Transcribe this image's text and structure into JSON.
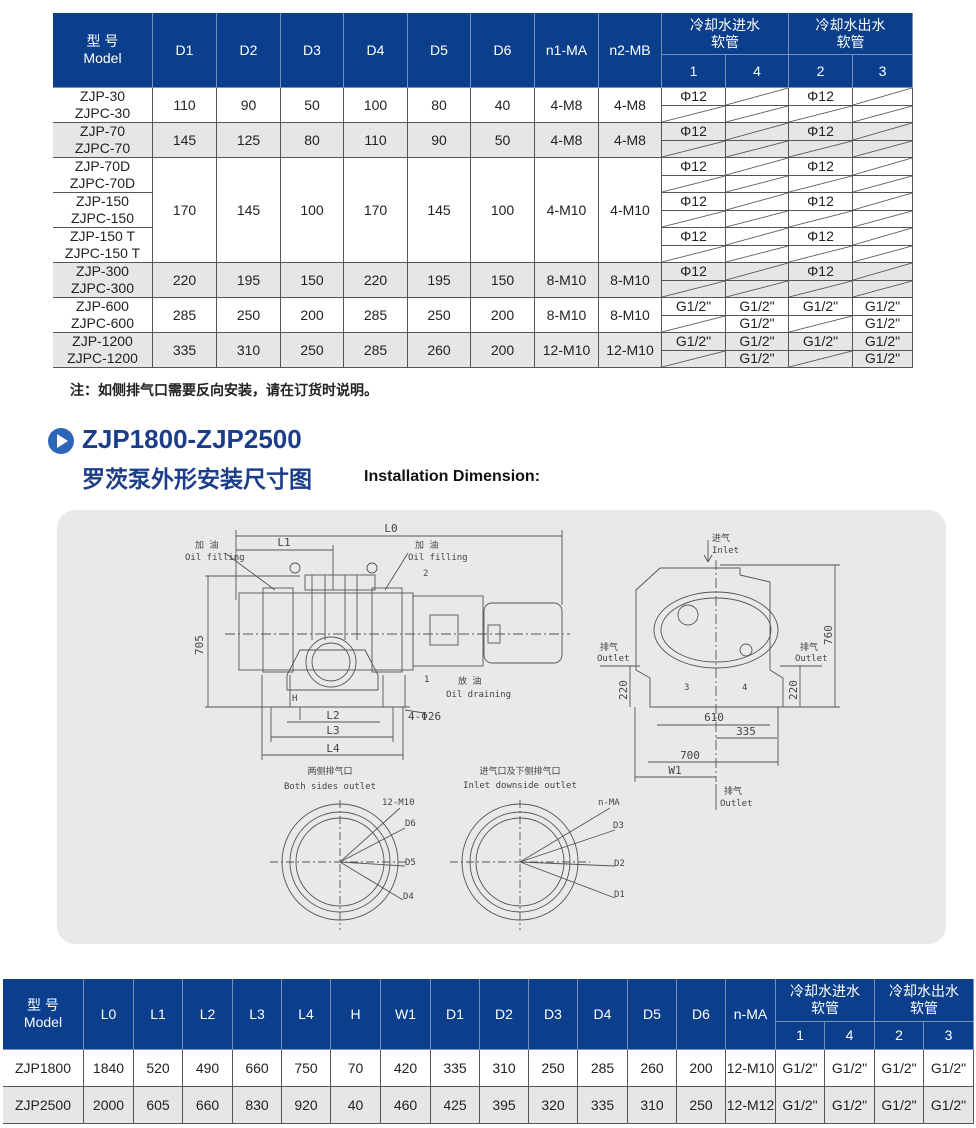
{
  "top_table": {
    "headers": {
      "model": "型  号\nModel",
      "cols": [
        "D1",
        "D2",
        "D3",
        "D4",
        "D5",
        "D6",
        "n1-MA",
        "n2-MB"
      ],
      "cool_in": "冷却水进水\n软管",
      "cool_out": "冷却水出水\n软管",
      "cool_sub": [
        "1",
        "4",
        "2",
        "3"
      ]
    },
    "blocks": [
      {
        "models": [
          "ZJP-30\nZJPC-30"
        ],
        "values": [
          "110",
          "90",
          "50",
          "100",
          "80",
          "40",
          "4-M8",
          "4-M8"
        ],
        "gray": false,
        "cooling": [
          [
            [
              "Φ12",
              ""
            ],
            [
              "",
              ""
            ],
            [
              "Φ12",
              ""
            ],
            [
              "",
              ""
            ]
          ]
        ]
      },
      {
        "models": [
          "ZJP-70\nZJPC-70"
        ],
        "values": [
          "145",
          "125",
          "80",
          "110",
          "90",
          "50",
          "4-M8",
          "4-M8"
        ],
        "gray": true,
        "cooling": [
          [
            [
              "Φ12",
              ""
            ],
            [
              "",
              ""
            ],
            [
              "Φ12",
              ""
            ],
            [
              "",
              ""
            ]
          ]
        ]
      },
      {
        "models": [
          "ZJP-70D\nZJPC-70D",
          "ZJP-150\nZJPC-150",
          "ZJP-150 T\nZJPC-150 T"
        ],
        "values": [
          "170",
          "145",
          "100",
          "170",
          "145",
          "100",
          "4-M10",
          "4-M10"
        ],
        "gray": false,
        "cooling": [
          [
            [
              "Φ12",
              ""
            ],
            [
              "",
              ""
            ],
            [
              "Φ12",
              ""
            ],
            [
              "",
              ""
            ]
          ],
          [
            [
              "Φ12",
              ""
            ],
            [
              "",
              ""
            ],
            [
              "Φ12",
              ""
            ],
            [
              "",
              ""
            ]
          ],
          [
            [
              "Φ12",
              ""
            ],
            [
              "",
              ""
            ],
            [
              "Φ12",
              ""
            ],
            [
              "",
              ""
            ]
          ]
        ]
      },
      {
        "models": [
          "ZJP-300\nZJPC-300"
        ],
        "values": [
          "220",
          "195",
          "150",
          "220",
          "195",
          "150",
          "8-M10",
          "8-M10"
        ],
        "gray": true,
        "cooling": [
          [
            [
              "Φ12",
              ""
            ],
            [
              "",
              ""
            ],
            [
              "Φ12",
              ""
            ],
            [
              "",
              ""
            ]
          ]
        ]
      },
      {
        "models": [
          "ZJP-600\nZJPC-600"
        ],
        "values": [
          "285",
          "250",
          "200",
          "285",
          "250",
          "200",
          "8-M10",
          "8-M10"
        ],
        "gray": false,
        "cooling": [
          [
            [
              "G1/2\"",
              ""
            ],
            [
              "G1/2\"",
              "G1/2\""
            ],
            [
              "G1/2\"",
              ""
            ],
            [
              "G1/2\"",
              "G1/2\""
            ]
          ]
        ]
      },
      {
        "models": [
          "ZJP-1200\nZJPC-1200"
        ],
        "values": [
          "335",
          "310",
          "250",
          "285",
          "260",
          "200",
          "12-M10",
          "12-M10"
        ],
        "gray": true,
        "cooling": [
          [
            [
              "G1/2\"",
              ""
            ],
            [
              "G1/2\"",
              "G1/2\""
            ],
            [
              "G1/2\"",
              ""
            ],
            [
              "G1/2\"",
              "G1/2\""
            ]
          ]
        ]
      }
    ]
  },
  "note": "注：如侧排气口需要反向安装，请在订货时说明。",
  "section": {
    "title": "ZJP1800-ZJP2500",
    "subtitle": "罗茨泵外形安装尺寸图",
    "subtitle_en": "Installation Dimension:"
  },
  "drawing": {
    "L0": "L0",
    "L1": "L1",
    "L2": "L2",
    "L3": "L3",
    "L4": "L4",
    "H": "H",
    "h705": "705",
    "foot": "4-Φ26",
    "oil_fill_cn": "加 油",
    "oil_fill_en": "Oil filling",
    "oil_drain_cn": "放 油",
    "oil_drain_en": "Oil draining",
    "n1": "1",
    "n2": "2",
    "n3": "3",
    "n4": "4",
    "inlet_cn": "进气",
    "inlet_en": "Inlet",
    "outlet_cn": "排气",
    "outlet_en": "Outlet",
    "h760": "760",
    "h220": "220",
    "w610": "610",
    "w335": "335",
    "w700": "700",
    "W1": "W1",
    "both_cn": "两侧排气口",
    "both_en": "Both sides outlet",
    "inlet_down_cn": "进气口及下侧排气口",
    "inlet_down_en": "Inlet downside outlet",
    "bolt_left": "12-M10",
    "D6": "D6",
    "D5": "D5",
    "D4": "D4",
    "nMA": "n-MA",
    "D3": "D3",
    "D2": "D2",
    "D1": "D1"
  },
  "bottom_table": {
    "headers": {
      "model": "型  号\nModel",
      "cols": [
        "L0",
        "L1",
        "L2",
        "L3",
        "L4",
        "H",
        "W1",
        "D1",
        "D2",
        "D3",
        "D4",
        "D5",
        "D6",
        "n-MA"
      ],
      "cool_in": "冷却水进水\n软管",
      "cool_out": "冷却水出水\n软管",
      "cool_sub": [
        "1",
        "4",
        "2",
        "3"
      ]
    },
    "rows": [
      {
        "model": "ZJP1800",
        "values": [
          "1840",
          "520",
          "490",
          "660",
          "750",
          "70",
          "420",
          "335",
          "310",
          "250",
          "285",
          "260",
          "200",
          "12-M10",
          "G1/2\"",
          "G1/2\"",
          "G1/2\"",
          "G1/2\""
        ]
      },
      {
        "model": "ZJP2500",
        "values": [
          "2000",
          "605",
          "660",
          "830",
          "920",
          "40",
          "460",
          "425",
          "395",
          "320",
          "335",
          "310",
          "250",
          "12-M12",
          "G1/2\"",
          "G1/2\"",
          "G1/2\"",
          "G1/2\""
        ]
      }
    ]
  },
  "colors": {
    "header": "#0b3f8c",
    "title": "#1b3d8a",
    "row_alt": "#e6e6e6"
  }
}
